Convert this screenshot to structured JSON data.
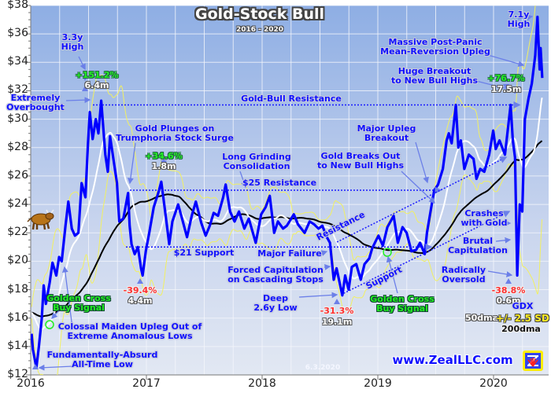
{
  "chart_data": {
    "type": "line",
    "title": "Gold-Stock Bull",
    "subtitle": "2016 - 2020",
    "ylim": [
      12,
      38
    ],
    "yticks": [
      "$12",
      "$14",
      "$16",
      "$18",
      "$20",
      "$22",
      "$24",
      "$26",
      "$28",
      "$30",
      "$32",
      "$34",
      "$36",
      "$38"
    ],
    "xlim": [
      "2016-01-01",
      "2020-06-12"
    ],
    "xticks": [
      "2016",
      "2017",
      "2018",
      "2019",
      "2020"
    ],
    "grid": true,
    "colors": {
      "gdx": "#0000ff",
      "ma50": "#ffffff",
      "ma200": "#000000",
      "bands": "#f2f060",
      "annotation": "#1010ff",
      "gain": "#22ee22",
      "loss": "#ff3030",
      "golden_cross": "#22ee22",
      "arrow": "#6b7fe8"
    },
    "legend": {
      "placement": "bottom-right",
      "series": "GDX",
      "ma50": "50dma",
      "bands": "+/- 2.5 SD",
      "ma200": "200dma"
    },
    "series": [
      {
        "name": "GDX",
        "points": [
          [
            "2016-01-04",
            14.9
          ],
          [
            "2016-01-08",
            13.8
          ],
          [
            "2016-01-19",
            12.5
          ],
          [
            "2016-01-27",
            14.0
          ],
          [
            "2016-02-05",
            16.0
          ],
          [
            "2016-02-11",
            18.3
          ],
          [
            "2016-02-18",
            17.0
          ],
          [
            "2016-03-01",
            18.5
          ],
          [
            "2016-03-10",
            19.9
          ],
          [
            "2016-03-22",
            19.0
          ],
          [
            "2016-03-31",
            20.3
          ],
          [
            "2016-04-08",
            20.0
          ],
          [
            "2016-04-20",
            22.5
          ],
          [
            "2016-04-29",
            24.2
          ],
          [
            "2016-05-10",
            22.3
          ],
          [
            "2016-05-20",
            21.8
          ],
          [
            "2016-05-31",
            22.0
          ],
          [
            "2016-06-10",
            25.5
          ],
          [
            "2016-06-22",
            24.5
          ],
          [
            "2016-06-30",
            28.2
          ],
          [
            "2016-07-06",
            30.5
          ],
          [
            "2016-07-15",
            28.6
          ],
          [
            "2016-07-25",
            30.0
          ],
          [
            "2016-08-02",
            29.0
          ],
          [
            "2016-08-11",
            31.3
          ],
          [
            "2016-08-24",
            27.5
          ],
          [
            "2016-09-01",
            26.3
          ],
          [
            "2016-09-08",
            28.8
          ],
          [
            "2016-09-20",
            27.0
          ],
          [
            "2016-09-30",
            25.5
          ],
          [
            "2016-10-07",
            22.8
          ],
          [
            "2016-10-20",
            23.0
          ],
          [
            "2016-11-04",
            24.8
          ],
          [
            "2016-11-09",
            22.5
          ],
          [
            "2016-11-15",
            21.2
          ],
          [
            "2016-11-25",
            20.5
          ],
          [
            "2016-12-05",
            21.0
          ],
          [
            "2016-12-15",
            19.5
          ],
          [
            "2016-12-20",
            19.0
          ],
          [
            "2016-12-30",
            20.7
          ],
          [
            "2017-01-10",
            22.0
          ],
          [
            "2017-01-24",
            23.8
          ],
          [
            "2017-02-10",
            25.0
          ],
          [
            "2017-02-17",
            25.6
          ],
          [
            "2017-03-01",
            23.5
          ],
          [
            "2017-03-14",
            21.2
          ],
          [
            "2017-03-24",
            22.8
          ],
          [
            "2017-04-11",
            24.0
          ],
          [
            "2017-04-21",
            23.2
          ],
          [
            "2017-05-09",
            21.7
          ],
          [
            "2017-05-24",
            23.2
          ],
          [
            "2017-06-06",
            24.2
          ],
          [
            "2017-06-23",
            22.7
          ],
          [
            "2017-07-07",
            21.8
          ],
          [
            "2017-07-20",
            22.5
          ],
          [
            "2017-08-01",
            23.4
          ],
          [
            "2017-08-15",
            23.2
          ],
          [
            "2017-08-31",
            24.5
          ],
          [
            "2017-09-08",
            25.4
          ],
          [
            "2017-09-22",
            23.5
          ],
          [
            "2017-10-06",
            22.8
          ],
          [
            "2017-10-20",
            23.5
          ],
          [
            "2017-11-06",
            22.3
          ],
          [
            "2017-11-20",
            23.0
          ],
          [
            "2017-12-12",
            21.3
          ],
          [
            "2017-12-29",
            23.3
          ],
          [
            "2018-01-12",
            23.8
          ],
          [
            "2018-01-25",
            24.6
          ],
          [
            "2018-02-08",
            22.0
          ],
          [
            "2018-02-20",
            22.8
          ],
          [
            "2018-03-08",
            22.3
          ],
          [
            "2018-03-20",
            22.5
          ],
          [
            "2018-04-11",
            23.3
          ],
          [
            "2018-04-24",
            22.6
          ],
          [
            "2018-05-15",
            22.0
          ],
          [
            "2018-05-31",
            22.8
          ],
          [
            "2018-06-14",
            22.6
          ],
          [
            "2018-06-28",
            22.3
          ],
          [
            "2018-07-10",
            22.5
          ],
          [
            "2018-07-24",
            21.7
          ],
          [
            "2018-08-03",
            21.3
          ],
          [
            "2018-08-15",
            18.7
          ],
          [
            "2018-08-24",
            19.5
          ],
          [
            "2018-09-11",
            17.6
          ],
          [
            "2018-09-20",
            19.0
          ],
          [
            "2018-10-01",
            18.0
          ],
          [
            "2018-10-11",
            19.6
          ],
          [
            "2018-10-25",
            19.8
          ],
          [
            "2018-11-08",
            18.7
          ],
          [
            "2018-11-20",
            19.8
          ],
          [
            "2018-12-05",
            20.2
          ],
          [
            "2018-12-14",
            20.9
          ],
          [
            "2018-12-27",
            21.5
          ],
          [
            "2019-01-03",
            21.8
          ],
          [
            "2019-01-17",
            21.1
          ],
          [
            "2019-01-31",
            22.4
          ],
          [
            "2019-02-20",
            23.2
          ],
          [
            "2019-03-05",
            21.3
          ],
          [
            "2019-03-20",
            22.4
          ],
          [
            "2019-04-02",
            22.0
          ],
          [
            "2019-04-17",
            20.7
          ],
          [
            "2019-05-02",
            20.8
          ],
          [
            "2019-05-14",
            21.3
          ],
          [
            "2019-05-29",
            20.5
          ],
          [
            "2019-06-05",
            22.0
          ],
          [
            "2019-06-20",
            24.0
          ],
          [
            "2019-06-28",
            25.0
          ],
          [
            "2019-07-10",
            25.4
          ],
          [
            "2019-07-25",
            26.5
          ],
          [
            "2019-08-06",
            28.5
          ],
          [
            "2019-08-13",
            29.0
          ],
          [
            "2019-08-22",
            28.3
          ],
          [
            "2019-09-04",
            31.0
          ],
          [
            "2019-09-12",
            28.0
          ],
          [
            "2019-09-20",
            28.5
          ],
          [
            "2019-10-01",
            26.5
          ],
          [
            "2019-10-15",
            27.5
          ],
          [
            "2019-10-30",
            27.2
          ],
          [
            "2019-11-08",
            25.8
          ],
          [
            "2019-11-20",
            26.5
          ],
          [
            "2019-12-03",
            26.3
          ],
          [
            "2019-12-18",
            27.5
          ],
          [
            "2019-12-31",
            29.2
          ],
          [
            "2020-01-08",
            27.9
          ],
          [
            "2020-01-20",
            28.5
          ],
          [
            "2020-02-06",
            27.5
          ],
          [
            "2020-02-24",
            31.0
          ],
          [
            "2020-03-02",
            28.5
          ],
          [
            "2020-03-09",
            27.3
          ],
          [
            "2020-03-16",
            19.0
          ],
          [
            "2020-03-24",
            24.0
          ],
          [
            "2020-04-01",
            23.5
          ],
          [
            "2020-04-09",
            30.0
          ],
          [
            "2020-04-21",
            31.5
          ],
          [
            "2020-05-01",
            32.5
          ],
          [
            "2020-05-12",
            34.5
          ],
          [
            "2020-05-19",
            37.2
          ],
          [
            "2020-05-26",
            33.5
          ],
          [
            "2020-05-29",
            35.0
          ],
          [
            "2020-06-03",
            32.9
          ]
        ]
      },
      {
        "name": "50dma"
      },
      {
        "name": "200dma"
      },
      {
        "name": "+/- 2.5 SD"
      }
    ],
    "levels": [
      {
        "label": "Gold-Bull Resistance",
        "value": 31
      },
      {
        "label": "$25 Resistance",
        "value": 25
      },
      {
        "label": "$21 Support",
        "value": 21
      }
    ],
    "annotations": {
      "high_3y": "3.3y\nHigh",
      "gain_2016": "+151.2%",
      "dur_2016": "6.4m",
      "overbought": "Extremely\nOverbought",
      "plunges": "Gold Plunges on\nTrumphoria Stock Surge",
      "gain_2017": "+34.6%",
      "dur_2017": "1.8m",
      "grinding": "Long Grinding\nConsolidation",
      "major_upleg": "Major Upleg\nBreakout",
      "gold_breaks": "Gold Breaks Out\nto New Bull Highs",
      "huge_breakout": "Huge Breakout\nto New Bull Highs",
      "gain_2019": "+76.7%",
      "dur_2019": "17.5m",
      "massive": "Massive Post-Panic\nMean-Reversion Upleg",
      "high_7y": "7.1y\nHigh",
      "crashes": "Crashes\nwith Gold",
      "brutal": "Brutal\nCapitulation",
      "oversold": "Radically\nOversold",
      "loss_2020": "-38.8%",
      "dur_2020": "0.6m",
      "major_failure": "Major Failure",
      "forced": "Forced Capitulation\non Cascading Stops",
      "deep": "Deep\n2.6y Low",
      "loss_2018": "-31.3%",
      "dur_2018": "19.1m",
      "resistance": "Resistance",
      "support": "Support",
      "gc_2019": "Golden Cross\nBuy Signal",
      "loss_2016": "-39.4%",
      "dur_2016b": "4.4m",
      "gc_2016": "Golden Cross\nBuy Signal",
      "colossal": "Colossal Maiden Upleg Out of\nExtreme Anomalous Lows",
      "absurd": "Fundamentally-Absurd\nAll-Time Low"
    },
    "footer": {
      "website": "www.ZealLLC.com",
      "date": "6.3.2020"
    }
  }
}
